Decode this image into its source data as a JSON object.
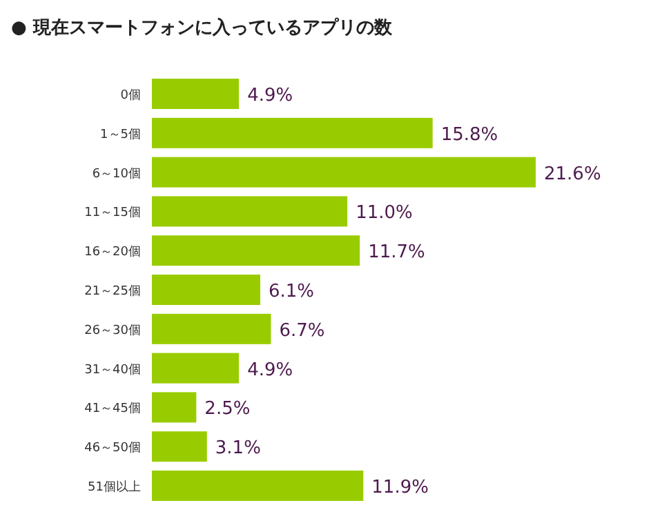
{
  "chart_data": {
    "type": "bar",
    "orientation": "horizontal",
    "title": "● 現在スマートフォンに入っているアプリの数",
    "categories": [
      "0個",
      "1～5個",
      "6～10個",
      "11～15個",
      "16～20個",
      "21～25個",
      "26～30個",
      "31～40個",
      "41～45個",
      "46～50個",
      "51個以上"
    ],
    "values": [
      4.9,
      15.8,
      21.6,
      11.0,
      11.7,
      6.1,
      6.7,
      4.9,
      2.5,
      3.1,
      11.9
    ],
    "value_labels": [
      "4.9%",
      "15.8%",
      "21.6%",
      "11.0%",
      "11.7%",
      "6.1%",
      "6.7%",
      "4.9%",
      "2.5%",
      "3.1%",
      "11.9%"
    ],
    "color": "#99cc00"
  }
}
